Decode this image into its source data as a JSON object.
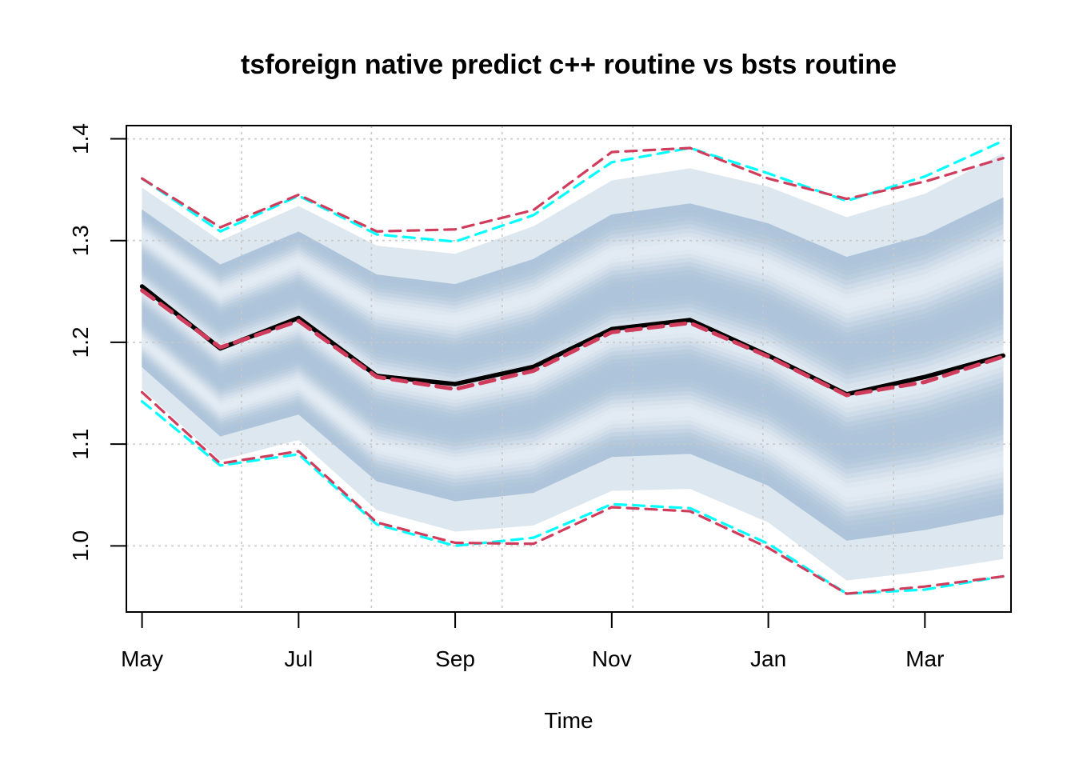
{
  "chart_data": {
    "type": "line",
    "title": "tsforeign native predict c++ routine vs bsts routine",
    "xlabel": "Time",
    "ylabel": "",
    "ylim": [
      0.935,
      1.413
    ],
    "xlim": [
      -0.2,
      11.1
    ],
    "x_ticks": [
      {
        "x": 0,
        "label": "May"
      },
      {
        "x": 2,
        "label": "Jul"
      },
      {
        "x": 4,
        "label": "Sep"
      },
      {
        "x": 6,
        "label": "Nov"
      },
      {
        "x": 8,
        "label": "Jan"
      },
      {
        "x": 10,
        "label": "Mar"
      }
    ],
    "y_ticks": [
      1.0,
      1.1,
      1.2,
      1.3,
      1.4
    ],
    "x_gridlines": [
      -0.4,
      1.27,
      2.93,
      4.6,
      6.27,
      7.93,
      9.6,
      11.27
    ],
    "y_gridlines": [
      1.0,
      1.1,
      1.2,
      1.3,
      1.4
    ],
    "grid": true,
    "x": [
      0,
      1,
      2,
      3,
      4,
      5,
      6,
      7,
      8,
      9,
      10,
      11
    ],
    "band": {
      "name": "distribution",
      "upper": [
        1.352,
        1.3,
        1.334,
        1.295,
        1.287,
        1.314,
        1.359,
        1.371,
        1.353,
        1.323,
        1.346,
        1.386
      ],
      "lower": [
        1.154,
        1.084,
        1.104,
        1.035,
        1.014,
        1.02,
        1.054,
        1.056,
        1.023,
        0.966,
        0.975,
        0.987
      ],
      "edge_color": "#dde7ef",
      "dark_color": "#aec4da",
      "light_color": "#e3ebf3"
    },
    "series": [
      {
        "style": "solid",
        "color": "#000000",
        "values": [
          1.255,
          1.194,
          1.224,
          1.167,
          1.159,
          1.176,
          1.213,
          1.222,
          1.187,
          1.149,
          1.166,
          1.187
        ]
      },
      {
        "style": "dashed",
        "color": "#00ffff",
        "values": [
          1.361,
          1.309,
          1.344,
          1.306,
          1.299,
          1.325,
          1.377,
          1.391,
          1.366,
          1.339,
          1.363,
          1.398
        ]
      },
      {
        "style": "dashed",
        "color": "#00ffff",
        "values": [
          1.142,
          1.079,
          1.09,
          1.021,
          1.0,
          1.008,
          1.041,
          1.037,
          1.002,
          0.953,
          0.957,
          0.97
        ]
      },
      {
        "style": "dashed",
        "color": "#d03c5c",
        "values": [
          1.251,
          1.195,
          1.221,
          1.166,
          1.154,
          1.172,
          1.21,
          1.219,
          1.186,
          1.148,
          1.161,
          1.186
        ]
      },
      {
        "style": "dashed",
        "color": "#d03c5c",
        "values": [
          1.361,
          1.313,
          1.345,
          1.309,
          1.311,
          1.33,
          1.387,
          1.391,
          1.361,
          1.341,
          1.358,
          1.381
        ]
      },
      {
        "style": "dashed",
        "color": "#d03c5c",
        "values": [
          1.151,
          1.081,
          1.093,
          1.023,
          1.003,
          1.002,
          1.038,
          1.034,
          0.998,
          0.953,
          0.96,
          0.97
        ]
      }
    ]
  }
}
